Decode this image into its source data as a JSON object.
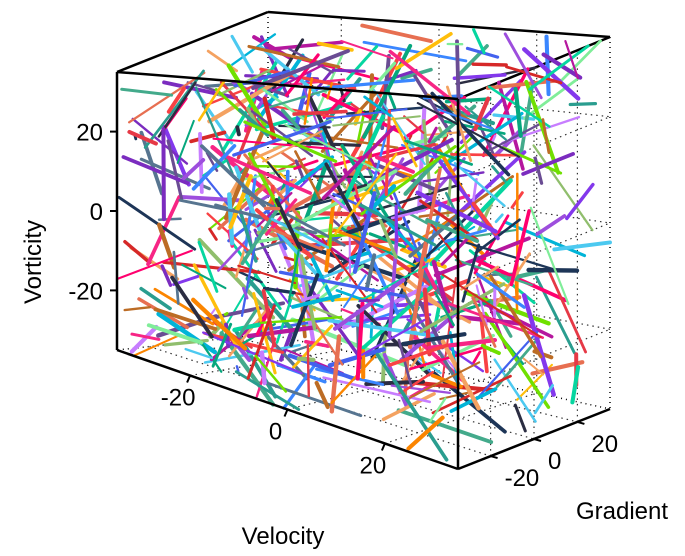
{
  "chart_data": {
    "type": "3d-line-segments",
    "axes": {
      "x": {
        "label": "Velocity",
        "ticks": [
          -20,
          0,
          20
        ],
        "range": [
          -35,
          35
        ]
      },
      "y": {
        "label": "Gradient",
        "ticks": [
          -20,
          0,
          20
        ],
        "range": [
          -35,
          35
        ]
      },
      "z": {
        "label": "Vorticity",
        "ticks": [
          -20,
          0,
          20
        ],
        "range": [
          -35,
          35
        ]
      }
    },
    "box": true,
    "grid": "dotted",
    "segment_count": 600,
    "segments_random_seed": 7,
    "segment_colors": [
      "#e63946",
      "#1d3557",
      "#2a9d8f",
      "#f4a261",
      "#8338ec",
      "#3a86ff",
      "#ff006e",
      "#06d6a0",
      "#ffbe0b",
      "#7b2cbf",
      "#43aa8b",
      "#90be6d",
      "#f94144",
      "#577590",
      "#c77dff",
      "#00b4d8",
      "#e76f51",
      "#6a4c93",
      "#b5179e",
      "#4cc9f0",
      "#80ed99",
      "#bc6c25",
      "#d62828",
      "#2b2d42",
      "#9d4edd",
      "#06a77d",
      "#f72585",
      "#4361ee",
      "#70e000",
      "#fb8500"
    ]
  }
}
